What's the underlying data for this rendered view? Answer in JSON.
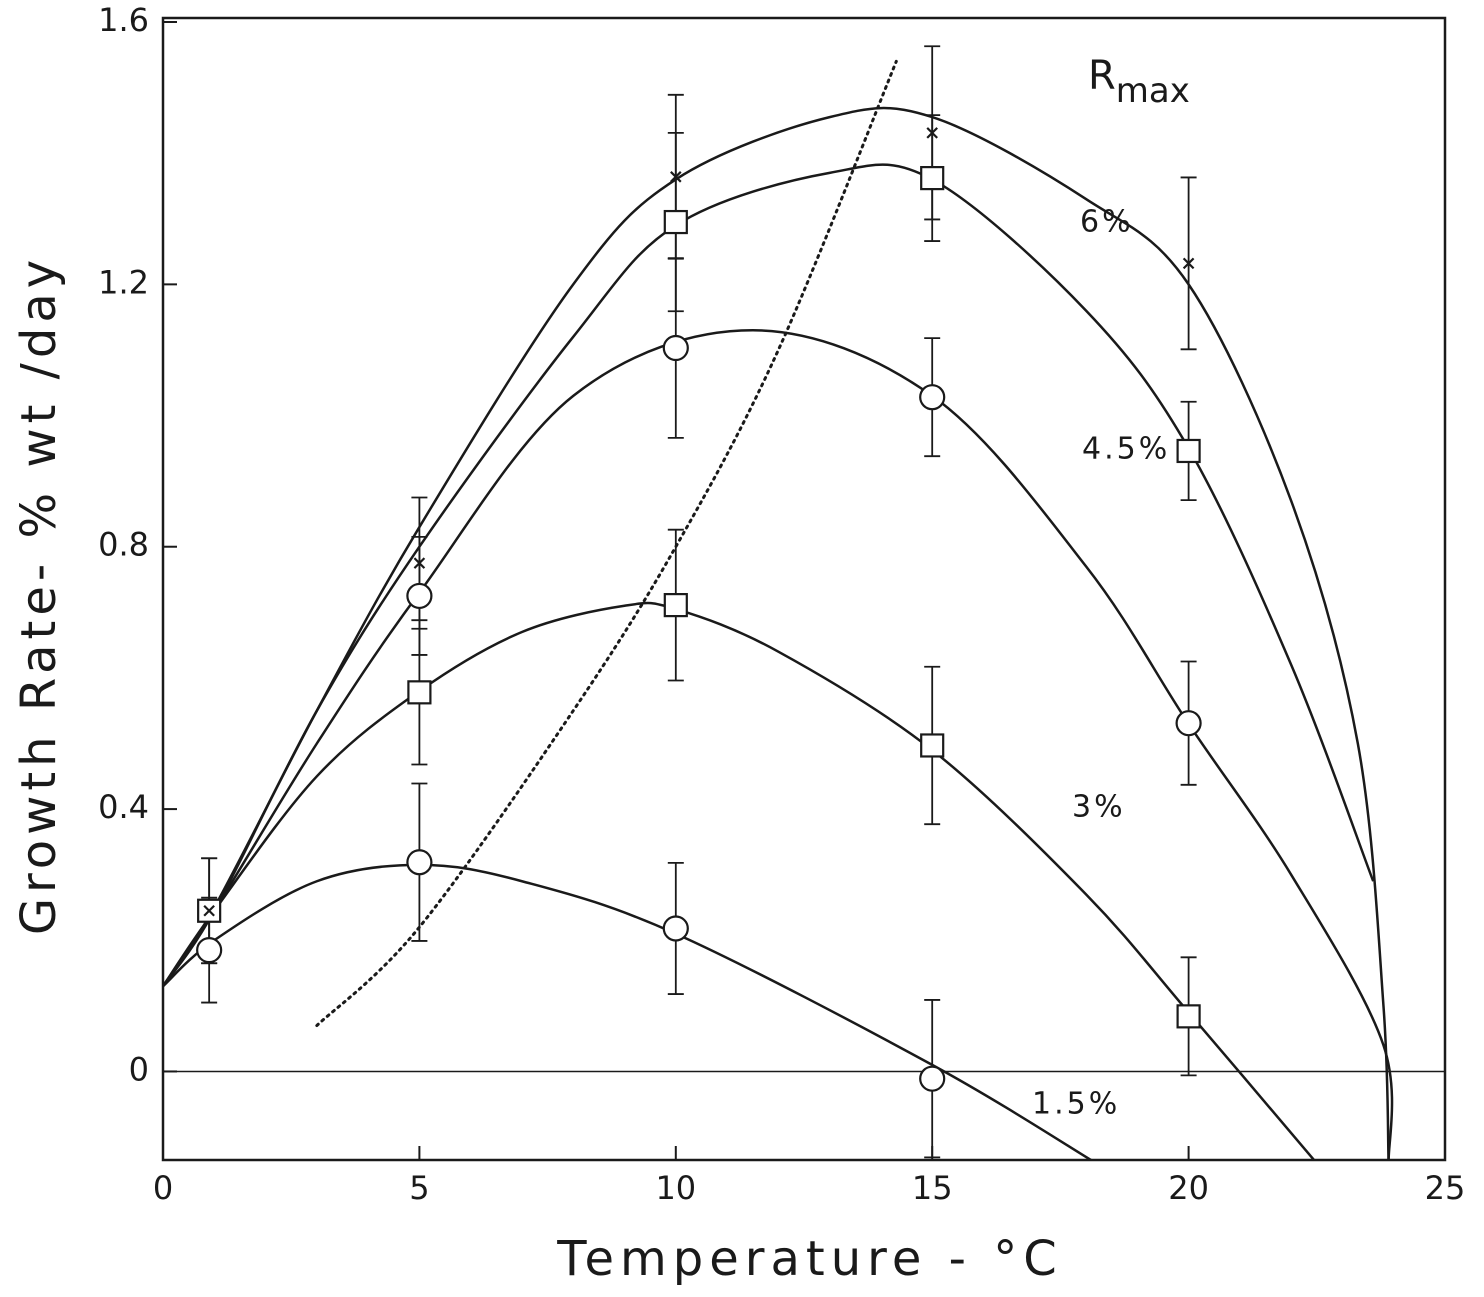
{
  "chart_data": {
    "type": "line",
    "xlabel": "Temperature - °C",
    "ylabel": "Growth Rate- % wt /day",
    "xlim": [
      0,
      25
    ],
    "xticks": [
      0,
      5,
      10,
      15,
      20,
      25
    ],
    "ylim": [
      -0.135,
      1.6
    ],
    "yticks": [
      0,
      0.4,
      0.8,
      1.2,
      1.6
    ],
    "hline": 0,
    "color": "#1a1a1a",
    "series": [
      {
        "name": "1.5%",
        "marker": "circle",
        "x": [
          0.9,
          5,
          10,
          15
        ],
        "values": [
          0.185,
          0.319,
          0.218,
          -0.011
        ],
        "errors": [
          0.08,
          0.12,
          0.1,
          0.12
        ],
        "curve": {
          "x": [
            0,
            1,
            3,
            5,
            7,
            10,
            15,
            18.2
          ],
          "y": [
            0.13,
            0.2,
            0.29,
            0.315,
            0.29,
            0.21,
            0.01,
            -0.14
          ]
        }
      },
      {
        "name": "3%",
        "marker": "square",
        "x": [
          0.9,
          5,
          10,
          15,
          20
        ],
        "values": [
          0.245,
          0.578,
          0.711,
          0.497,
          0.084
        ],
        "errors": [
          0.08,
          0.11,
          0.115,
          0.12,
          0.09
        ],
        "curve": {
          "x": [
            0,
            1,
            3,
            5,
            7,
            9,
            10,
            12,
            15,
            18,
            20,
            22.5
          ],
          "y": [
            0.13,
            0.245,
            0.45,
            0.58,
            0.67,
            0.71,
            0.705,
            0.64,
            0.49,
            0.27,
            0.09,
            -0.14
          ]
        }
      },
      {
        "name": "4.5%",
        "marker": "circle",
        "x": [
          5,
          10,
          15,
          20
        ],
        "values": [
          0.725,
          1.103,
          1.028,
          0.531
        ],
        "errors": [
          0.09,
          0.137,
          0.09,
          0.094
        ],
        "curve": {
          "x": [
            0,
            1,
            3,
            5,
            8,
            11.5,
            15,
            18,
            20,
            22,
            23.8,
            23.9
          ],
          "y": [
            0.13,
            0.245,
            0.5,
            0.73,
            1.03,
            1.13,
            1.03,
            0.77,
            0.53,
            0.3,
            0.04,
            -0.14
          ]
        }
      },
      {
        "name": "6%",
        "marker": "square",
        "x": [
          10,
          15,
          20
        ],
        "values": [
          1.295,
          1.362,
          0.946
        ],
        "errors": [
          0.136,
          0.096,
          0.075
        ],
        "curve": {
          "x": [
            0,
            1,
            3,
            5,
            8,
            10,
            13,
            15,
            18,
            20,
            22,
            23.6
          ],
          "y": [
            0.13,
            0.245,
            0.55,
            0.8,
            1.12,
            1.29,
            1.37,
            1.36,
            1.16,
            0.95,
            0.62,
            0.29
          ]
        }
      },
      {
        "name": "R",
        "name_subscript": "max",
        "marker": "x",
        "x": [
          0.9,
          5,
          10,
          15,
          20
        ],
        "values": [
          0.245,
          0.775,
          1.364,
          1.431,
          1.232
        ],
        "errors": [
          0.08,
          0.1,
          0.125,
          0.132,
          0.131
        ],
        "curve": {
          "x": [
            0,
            1,
            3,
            5,
            8,
            10,
            13,
            15,
            18,
            20,
            22,
            23.3,
            23.8,
            23.9
          ],
          "y": [
            0.13,
            0.25,
            0.55,
            0.83,
            1.2,
            1.36,
            1.455,
            1.455,
            1.33,
            1.2,
            0.87,
            0.5,
            0.1,
            -0.14
          ]
        }
      }
    ],
    "optimum": {
      "x": [
        3,
        5,
        8,
        10,
        12,
        14.3
      ],
      "y": [
        0.07,
        0.22,
        0.55,
        0.8,
        1.1,
        1.54
      ]
    }
  }
}
